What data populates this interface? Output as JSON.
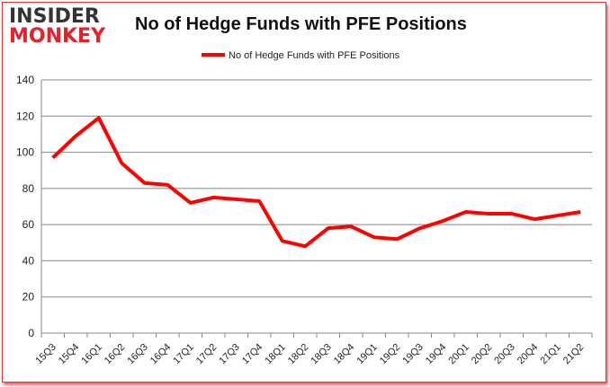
{
  "logo": {
    "line1": "INSIDER",
    "line2": "MONKEY"
  },
  "colors": {
    "series": "#ff0000",
    "grid": "#888888",
    "logo_red": "#e8202a"
  },
  "chart_data": {
    "type": "line",
    "title": "No of Hedge Funds with PFE Positions",
    "xlabel": "",
    "ylabel": "",
    "categories": [
      "15Q3",
      "15Q4",
      "16Q1",
      "16Q2",
      "16Q3",
      "16Q4",
      "17Q1",
      "17Q2",
      "17Q3",
      "17Q4",
      "18Q1",
      "18Q2",
      "18Q3",
      "18Q4",
      "19Q1",
      "19Q2",
      "19Q3",
      "19Q4",
      "20Q1",
      "20Q2",
      "20Q3",
      "20Q4",
      "21Q1",
      "21Q2"
    ],
    "series": [
      {
        "name": "No of Hedge Funds with PFE Positions",
        "values": [
          97,
          109,
          119,
          94,
          83,
          82,
          72,
          75,
          74,
          73,
          51,
          48,
          58,
          59,
          53,
          52,
          58,
          62,
          67,
          66,
          66,
          63,
          65,
          67
        ]
      }
    ],
    "ylim": [
      0,
      140
    ],
    "yticks": [
      0,
      20,
      40,
      60,
      80,
      100,
      120,
      140
    ],
    "grid": true,
    "legend": "top"
  }
}
